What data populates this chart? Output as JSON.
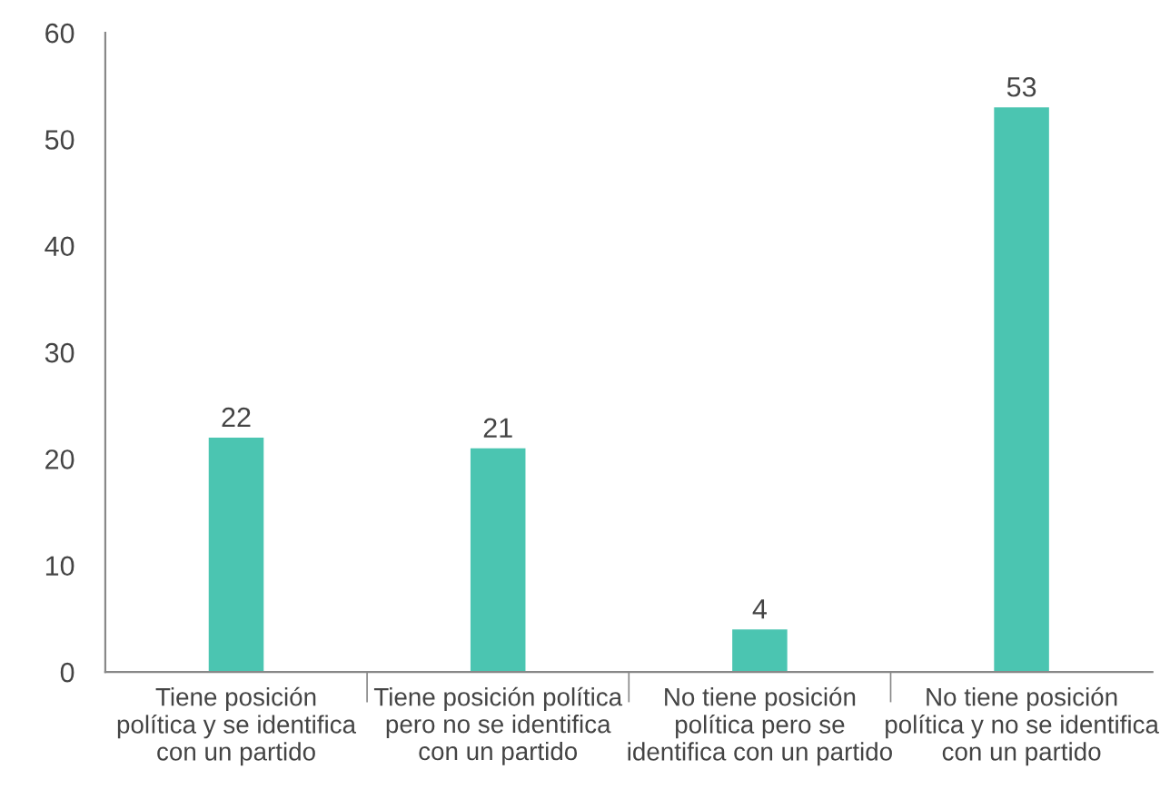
{
  "chart_data": {
    "type": "bar",
    "categories": [
      "Tiene posición\npolítica y se identifica\ncon un partido",
      "Tiene posición política\npero no se identifica\ncon un partido",
      "No tiene posición\npolítica pero se\nidentifica con un partido",
      "No tiene posición\npolítica y no se identifica\ncon un partido"
    ],
    "values": [
      22,
      21,
      4,
      53
    ],
    "color": "#4bc5b1",
    "ylim": [
      0,
      60
    ],
    "yticks": [
      0,
      10,
      20,
      30,
      40,
      50,
      60
    ],
    "data_labels": true,
    "grid": false,
    "legend": false
  }
}
